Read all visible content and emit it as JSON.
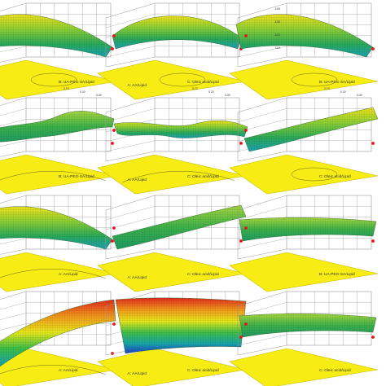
{
  "chart_data": [
    {
      "type": "surface-3d",
      "floor_label": "B: UA-PEG-SA/Lipid",
      "side_label": "",
      "z_ticks": [],
      "axis_ticks": [
        "0.10",
        "0.20",
        "0.30"
      ],
      "surface": "tilted-ridge",
      "zone": "mixed",
      "contour": "ellipse"
    },
    {
      "type": "surface-3d",
      "floor_label": "C: Oleic acid/Lipid",
      "side_label": "A: AA/Lipid",
      "z_ticks": [],
      "axis_ticks": [
        "0.10",
        "0.20",
        "0.30"
      ],
      "surface": "dome",
      "zone": "mixed",
      "contour": "ellipse"
    },
    {
      "type": "surface-3d",
      "floor_label": "B: UA-PEG-SA/Lipid",
      "side_label": "",
      "z_ticks": [
        "140",
        "130",
        "120",
        "110"
      ],
      "axis_ticks": [
        "0.10",
        "0.20",
        "0.30"
      ],
      "surface": "tilted-ridge",
      "zone": "mixed",
      "contour": "ellipse"
    },
    {
      "type": "surface-3d",
      "floor_label": "B: UA-PEG-SA/Lipid",
      "side_label": "",
      "z_ticks": [],
      "axis_ticks": [],
      "surface": "wave",
      "zone": "green",
      "contour": "arc"
    },
    {
      "type": "surface-3d",
      "floor_label": "C: Oleic acid/Lipid",
      "side_label": "A: AA/Lipid",
      "z_ticks": [],
      "axis_ticks": [],
      "surface": "saddle-wave",
      "zone": "mixed",
      "contour": "arc"
    },
    {
      "type": "surface-3d",
      "floor_label": "C: Oleic acid/Lipid",
      "side_label": "",
      "z_ticks": [],
      "axis_ticks": [],
      "surface": "ramp",
      "zone": "mixed",
      "contour": "ellipse"
    },
    {
      "type": "surface-3d",
      "floor_label": "A: AA/Lipid",
      "side_label": "",
      "z_ticks": [],
      "axis_ticks": [],
      "surface": "tilted-ridge",
      "zone": "mixed",
      "contour": "arc"
    },
    {
      "type": "surface-3d",
      "floor_label": "C: Oleic acid/Lipid",
      "side_label": "A: AA/Lipid",
      "z_ticks": [],
      "axis_ticks": [],
      "surface": "ramp",
      "zone": "green",
      "contour": "none"
    },
    {
      "type": "surface-3d",
      "floor_label": "B: UA-PEG-SA/Lipid",
      "side_label": "",
      "z_ticks": [],
      "axis_ticks": [],
      "surface": "flat",
      "zone": "green",
      "contour": "none"
    },
    {
      "type": "surface-3d",
      "floor_label": "A: AA/Lipid",
      "side_label": "",
      "z_ticks": [],
      "axis_ticks": [],
      "surface": "steep-rise",
      "zone": "rainbow",
      "contour": "arc"
    },
    {
      "type": "surface-3d",
      "floor_label": "C: Oleic acid/Lipid",
      "side_label": "A: AA/Lipid",
      "z_ticks": [],
      "axis_ticks": [],
      "surface": "rainbow-slope",
      "zone": "rainbow",
      "contour": "none"
    },
    {
      "type": "surface-3d",
      "floor_label": "C: Oleic acid/Lipid",
      "side_label": "",
      "z_ticks": [],
      "axis_ticks": [],
      "surface": "flat",
      "zone": "green",
      "contour": "none"
    }
  ],
  "colors": {
    "floor": "#f7ec14",
    "floor_edge": "#c9bd0c",
    "grid": "#9a9a9a",
    "text": "#333333",
    "design_point": "#e8131b",
    "mesh": "#1f4020"
  }
}
